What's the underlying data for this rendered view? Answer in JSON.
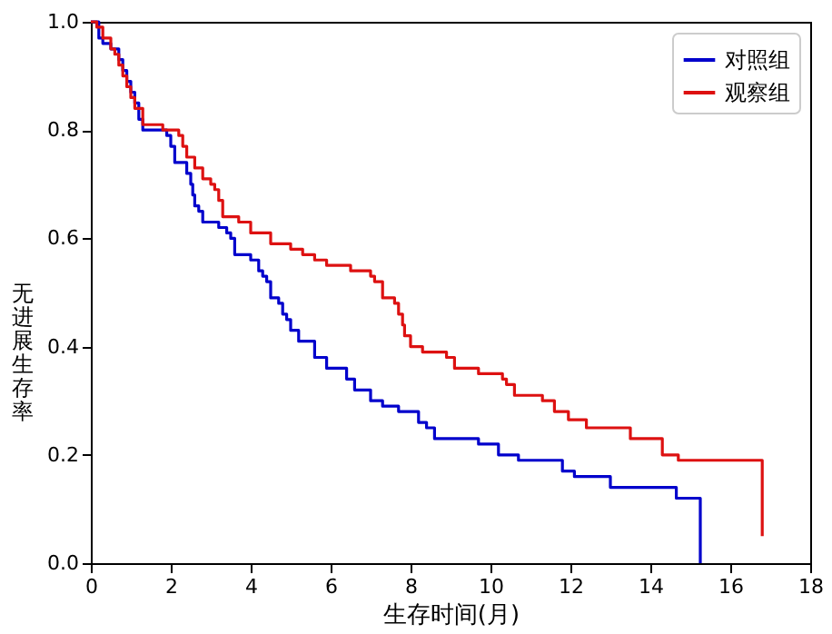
{
  "chart_data": {
    "type": "step",
    "xlabel": "生存时间(月)",
    "ylabel": "无进展生存率",
    "xlim": [
      0,
      18
    ],
    "xticks": [
      0,
      2,
      4,
      6,
      8,
      10,
      12,
      14,
      16,
      18
    ],
    "ylim": [
      0,
      1
    ],
    "yticks": [
      {
        "value": 0,
        "label": "0.0"
      },
      {
        "value": 0.2,
        "label": "0.2"
      },
      {
        "value": 0.4,
        "label": "0.4"
      },
      {
        "value": 0.6,
        "label": "0.6"
      },
      {
        "value": 0.8,
        "label": "0.8"
      },
      {
        "value": 1,
        "label": "1.0"
      }
    ],
    "grid": false,
    "legend": "top right",
    "marker": "none",
    "line_style": "solid",
    "series": [
      {
        "name": "对照组",
        "color": "#0000cc",
        "x": [
          0,
          0.2,
          0.3,
          0.5,
          0.7,
          0.8,
          0.9,
          1.0,
          1.1,
          1.2,
          1.3,
          1.9,
          2.0,
          2.1,
          2.4,
          2.5,
          2.55,
          2.6,
          2.7,
          2.8,
          3.2,
          3.4,
          3.5,
          3.6,
          4.0,
          4.2,
          4.3,
          4.4,
          4.5,
          4.7,
          4.8,
          4.9,
          5.0,
          5.2,
          5.6,
          5.9,
          6.4,
          6.6,
          7.0,
          7.3,
          7.7,
          8.2,
          8.4,
          8.6,
          9.7,
          10.2,
          10.7,
          11.8,
          12.1,
          13.0,
          14.65,
          15.25
        ],
        "values": [
          1.0,
          0.97,
          0.96,
          0.95,
          0.93,
          0.91,
          0.89,
          0.87,
          0.85,
          0.82,
          0.8,
          0.79,
          0.77,
          0.74,
          0.72,
          0.7,
          0.68,
          0.66,
          0.65,
          0.63,
          0.62,
          0.61,
          0.6,
          0.57,
          0.56,
          0.54,
          0.53,
          0.52,
          0.49,
          0.48,
          0.46,
          0.45,
          0.43,
          0.41,
          0.38,
          0.36,
          0.34,
          0.32,
          0.3,
          0.29,
          0.28,
          0.26,
          0.25,
          0.23,
          0.22,
          0.2,
          0.19,
          0.17,
          0.16,
          0.14,
          0.12,
          0.0
        ]
      },
      {
        "name": "观察组",
        "color": "#dd1111",
        "x": [
          0,
          0.15,
          0.3,
          0.5,
          0.6,
          0.7,
          0.8,
          0.9,
          1.0,
          1.1,
          1.3,
          1.8,
          2.2,
          2.3,
          2.4,
          2.6,
          2.8,
          3.0,
          3.1,
          3.2,
          3.3,
          3.7,
          4.0,
          4.5,
          5.0,
          5.3,
          5.6,
          5.9,
          6.5,
          7.0,
          7.1,
          7.3,
          7.6,
          7.7,
          7.8,
          7.85,
          8.0,
          8.3,
          8.9,
          9.1,
          9.7,
          10.3,
          10.4,
          10.6,
          11.3,
          11.6,
          11.95,
          12.4,
          13.5,
          14.3,
          14.7,
          16.8
        ],
        "values": [
          1.0,
          0.99,
          0.97,
          0.95,
          0.94,
          0.92,
          0.9,
          0.88,
          0.86,
          0.84,
          0.81,
          0.8,
          0.79,
          0.77,
          0.75,
          0.73,
          0.71,
          0.7,
          0.69,
          0.67,
          0.64,
          0.63,
          0.61,
          0.59,
          0.58,
          0.57,
          0.56,
          0.55,
          0.54,
          0.53,
          0.52,
          0.49,
          0.48,
          0.46,
          0.44,
          0.42,
          0.4,
          0.39,
          0.38,
          0.36,
          0.35,
          0.34,
          0.33,
          0.31,
          0.3,
          0.28,
          0.265,
          0.25,
          0.23,
          0.2,
          0.19,
          0.05
        ]
      }
    ]
  }
}
